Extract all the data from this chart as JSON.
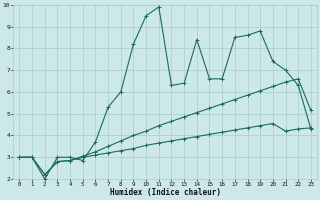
{
  "xlabel": "Humidex (Indice chaleur)",
  "bg_color": "#cce8e8",
  "line_color": "#1a6b5a",
  "grid_color": "#aacccc",
  "line1_x": [
    0,
    1,
    2,
    3,
    4,
    5,
    6,
    7,
    8,
    9,
    10,
    11,
    12,
    13,
    14,
    15,
    16,
    17,
    18,
    19,
    20,
    21,
    22,
    23
  ],
  "line1_y": [
    3.0,
    3.0,
    2.0,
    3.0,
    3.0,
    2.85,
    3.7,
    5.3,
    6.0,
    8.2,
    9.5,
    9.9,
    6.3,
    6.4,
    8.4,
    6.6,
    6.6,
    8.5,
    8.6,
    8.8,
    7.4,
    7.0,
    6.3,
    4.3
  ],
  "line2_x": [
    0,
    1,
    2,
    3,
    4,
    5,
    6,
    7,
    8,
    9,
    10,
    11,
    12,
    13,
    14,
    15,
    16,
    17,
    18,
    19,
    20,
    21,
    22,
    23
  ],
  "line2_y": [
    3.0,
    3.0,
    2.2,
    2.8,
    2.85,
    3.0,
    3.1,
    3.2,
    3.3,
    3.4,
    3.55,
    3.65,
    3.75,
    3.85,
    3.95,
    4.05,
    4.15,
    4.25,
    4.35,
    4.45,
    4.55,
    4.2,
    4.3,
    4.35
  ],
  "line3_x": [
    0,
    1,
    2,
    3,
    4,
    5,
    6,
    7,
    8,
    9,
    10,
    11,
    12,
    13,
    14,
    15,
    16,
    17,
    18,
    19,
    20,
    21,
    22,
    23
  ],
  "line3_y": [
    3.0,
    3.0,
    2.2,
    2.8,
    2.85,
    3.05,
    3.25,
    3.5,
    3.75,
    4.0,
    4.2,
    4.45,
    4.65,
    4.85,
    5.05,
    5.25,
    5.45,
    5.65,
    5.85,
    6.05,
    6.25,
    6.45,
    6.6,
    5.15
  ],
  "xlim": [
    -0.5,
    23.5
  ],
  "ylim": [
    2,
    10
  ],
  "yticks": [
    2,
    3,
    4,
    5,
    6,
    7,
    8,
    9,
    10
  ],
  "xticks": [
    0,
    1,
    2,
    3,
    4,
    5,
    6,
    7,
    8,
    9,
    10,
    11,
    12,
    13,
    14,
    15,
    16,
    17,
    18,
    19,
    20,
    21,
    22,
    23
  ]
}
